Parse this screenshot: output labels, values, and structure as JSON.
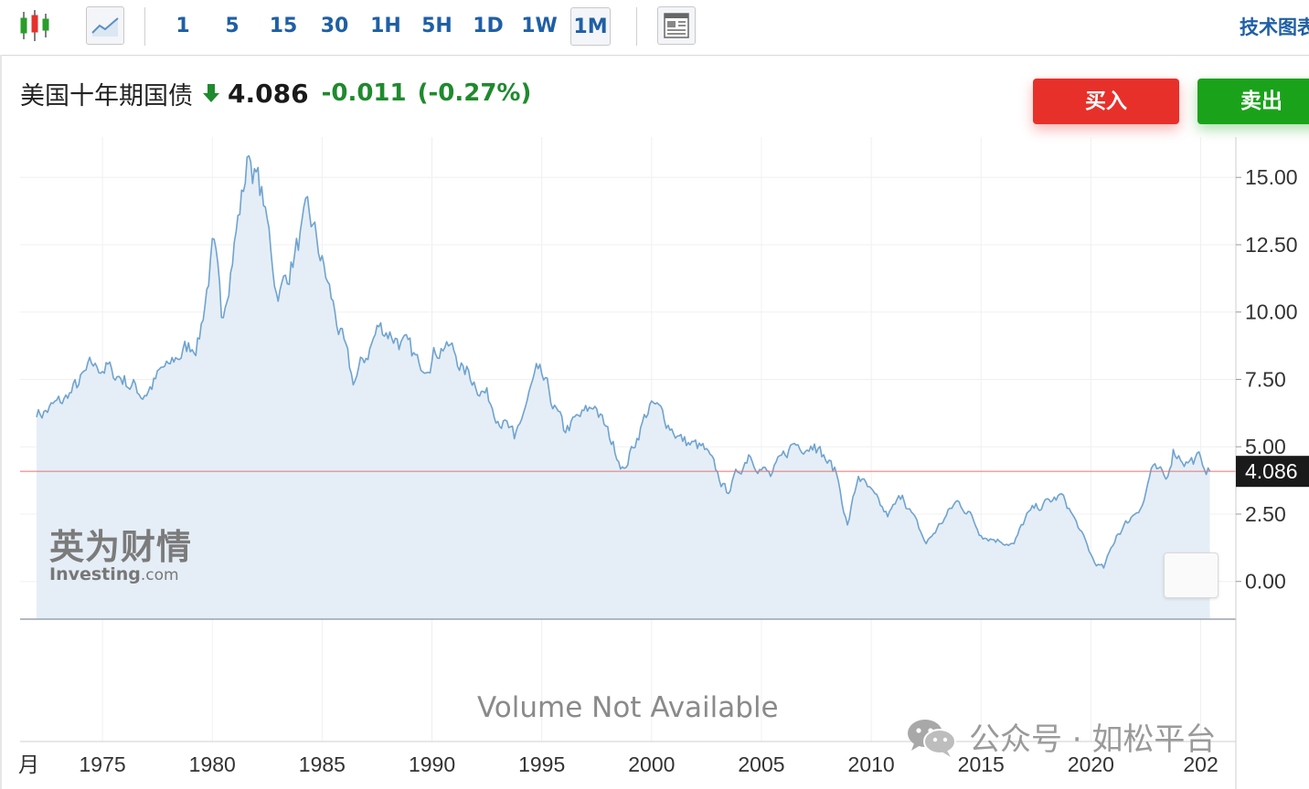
{
  "toolbar": {
    "timeframes": [
      "1",
      "5",
      "15",
      "30",
      "1H",
      "5H",
      "1D",
      "1W",
      "1M"
    ],
    "active_timeframe": "1M",
    "tech_chart_link": "技术图表"
  },
  "quote": {
    "name": "美国十年期国债",
    "direction_icon": "down-arrow-icon",
    "price": "4.086",
    "change": "-0.011",
    "change_pct": "(-0.27%)"
  },
  "actions": {
    "buy_label": "买入",
    "sell_label": "卖出"
  },
  "watermark": {
    "brand_cn": "英为财情",
    "brand_en": "Investing",
    "brand_en_suffix": ".com"
  },
  "volume_note": "Volume Not Available",
  "overlay": {
    "wechat_icon": "wechat-icon",
    "text": "公众号 · 如松平台"
  },
  "colors": {
    "line": "#6fa3cf",
    "fill": "#e5eef6",
    "price_line": "#e07575",
    "price_label_bg": "#1a1a1a",
    "down": "#1f8a2e",
    "buy": "#e8302a",
    "sell": "#1ba21b",
    "link": "#1f5fa6"
  },
  "chart_data": {
    "type": "area",
    "series": [
      {
        "x": [
          "1972-01",
          "1973-06",
          "1974-09",
          "1975-06",
          "1976-12",
          "1978-01",
          "1979-06",
          "1980-02",
          "1980-06",
          "1981-09",
          "1982-06",
          "1983-01",
          "1984-06",
          "1985-06",
          "1986-06",
          "1987-09",
          "1988-06",
          "1989-06",
          "1990-09",
          "1991-06",
          "1992-06",
          "1993-10",
          "1994-11",
          "1996-01",
          "1997-06",
          "1998-10",
          "2000-01",
          "2001-06",
          "2002-06",
          "2003-06",
          "2004-06",
          "2005-06",
          "2006-06",
          "2007-06",
          "2008-06",
          "2008-12",
          "2009-06",
          "2010-10",
          "2011-06",
          "2012-07",
          "2013-12",
          "2014-06",
          "2015-01",
          "2016-07",
          "2017-03",
          "2018-10",
          "2019-06",
          "2020-03",
          "2020-08",
          "2021-03",
          "2022-06",
          "2022-10",
          "2023-06",
          "2023-10",
          "2024-06",
          "2025-01",
          "2025-06"
        ],
        "y": [
          6.1,
          6.8,
          8.1,
          7.9,
          6.9,
          8.1,
          9.0,
          12.7,
          9.8,
          15.8,
          13.9,
          10.4,
          13.7,
          10.5,
          7.3,
          9.6,
          9.0,
          8.1,
          8.9,
          8.0,
          7.0,
          5.3,
          7.9,
          5.6,
          6.5,
          4.2,
          6.7,
          5.2,
          4.9,
          3.3,
          4.7,
          3.9,
          5.1,
          5.1,
          4.0,
          2.1,
          3.9,
          2.4,
          3.2,
          1.4,
          3.0,
          2.6,
          1.7,
          1.4,
          2.6,
          3.2,
          2.0,
          0.7,
          0.5,
          1.7,
          3.0,
          4.2,
          3.8,
          4.9,
          4.4,
          4.6,
          4.09
        ]
      }
    ],
    "last_value": 4.086,
    "x_ticks": [
      "月",
      "1975",
      "1980",
      "1985",
      "1990",
      "1995",
      "2000",
      "2005",
      "2010",
      "2015",
      "2020",
      "202"
    ],
    "y_ticks": [
      "15.00",
      "12.50",
      "10.00",
      "7.50",
      "5.00",
      "2.50",
      "0.00"
    ],
    "ylim": [
      -1.4,
      16.5
    ],
    "xlim": [
      1971.25,
      2026.6
    ],
    "grid": true
  }
}
